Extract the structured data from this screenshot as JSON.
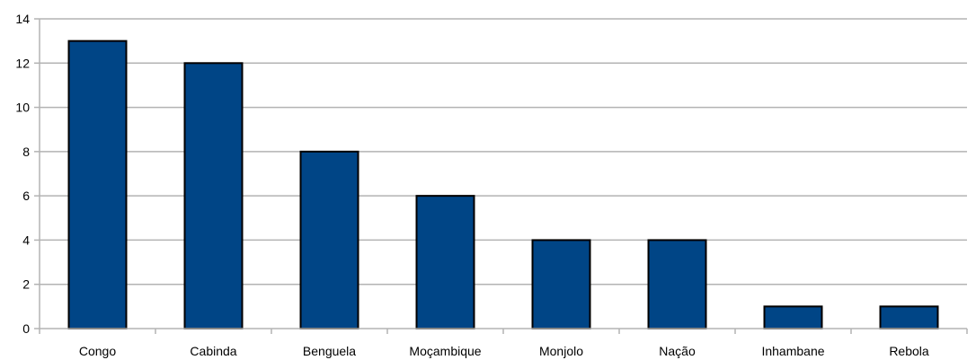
{
  "chart_data": {
    "type": "bar",
    "title": "",
    "xlabel": "",
    "ylabel": "",
    "categories": [
      "Congo",
      "Cabinda",
      "Benguela",
      "Moçambique",
      "Monjolo",
      "Nação",
      "Inhambane",
      "Rebola"
    ],
    "values": [
      13,
      12,
      8,
      6,
      4,
      4,
      1,
      1
    ],
    "ylim": [
      0,
      14
    ],
    "yticks": [
      "0",
      "2",
      "4",
      "6",
      "8",
      "10",
      "12",
      "14"
    ],
    "grid": true,
    "legend": "none",
    "bar_color": "#004586"
  }
}
